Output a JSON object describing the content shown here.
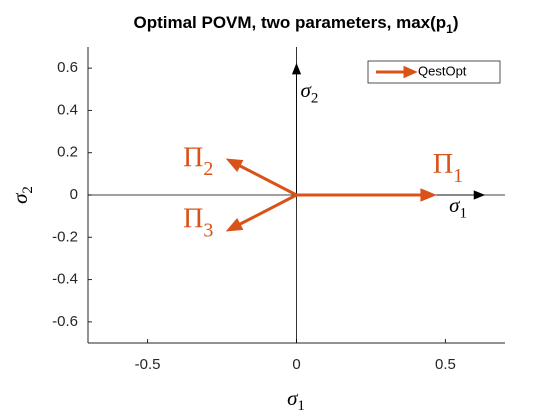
{
  "chart_data": {
    "type": "quiver",
    "title": {
      "text": "Optimal POVM, two parameters, max(p",
      "sub": "1",
      "tail": ")"
    },
    "xlabel": {
      "text": "σ",
      "sub": "1"
    },
    "ylabel": {
      "text": "σ",
      "sub": "2"
    },
    "xlim": [
      -0.7,
      0.7
    ],
    "ylim": [
      -0.7,
      0.7
    ],
    "xticks": [
      -0.5,
      0,
      0.5
    ],
    "yticks": [
      -0.6,
      -0.4,
      -0.2,
      0,
      0.2,
      0.4,
      0.6
    ],
    "legend": "upper right",
    "series": [
      {
        "name": "QestOpt",
        "color": "#d95319",
        "u": [
          0.458,
          -0.226,
          -0.226
        ],
        "v": [
          0,
          0.164,
          -0.164
        ],
        "labels": [
          {
            "text": "Π",
            "sub": "1"
          },
          {
            "text": "Π",
            "sub": "2"
          },
          {
            "text": "Π",
            "sub": "3"
          }
        ]
      }
    ],
    "axis_arrows": [
      {
        "text": "σ",
        "sub": "1",
        "u": 0.63,
        "v": 0
      },
      {
        "text": "σ",
        "sub": "2",
        "u": 0,
        "v": 0.62
      }
    ]
  }
}
